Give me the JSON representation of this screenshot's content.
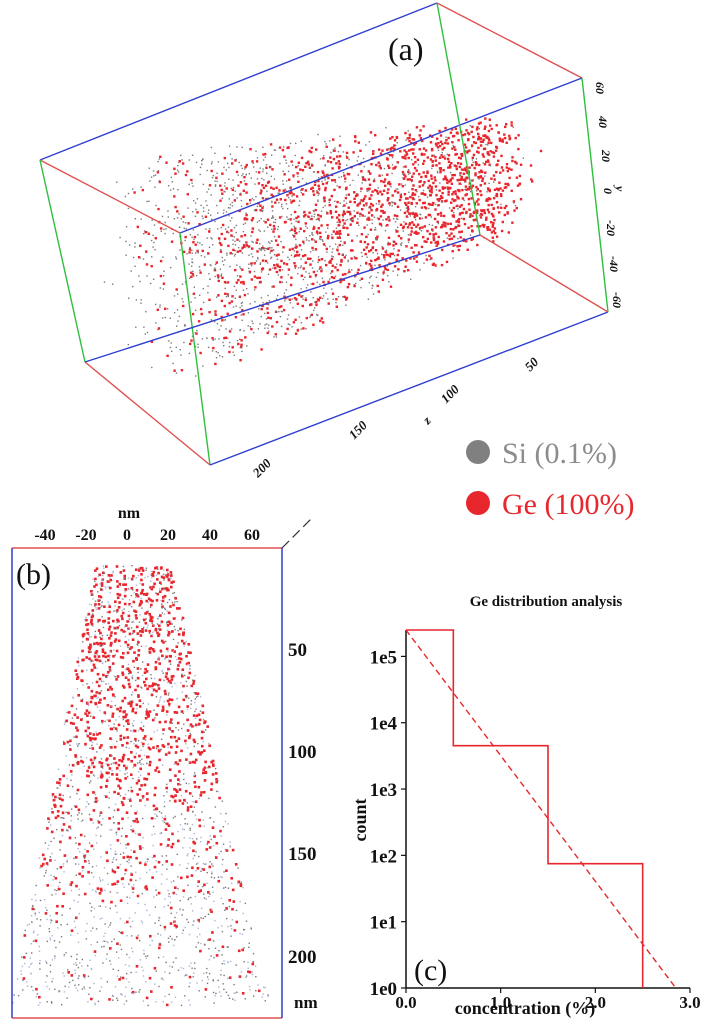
{
  "panel_a": {
    "label": "(a)",
    "z_ticks": [
      "200",
      "150",
      "100",
      "50"
    ],
    "z_axis_label": "z",
    "y_ticks": [
      "60",
      "40",
      "20",
      "0",
      "-20",
      "-40",
      "-60"
    ],
    "y_axis_label": "y"
  },
  "legend": {
    "items": [
      {
        "label": "Si (0.1%)",
        "color": "#808080",
        "text_color": "#8c8c8c"
      },
      {
        "label": "Ge (100%)",
        "color": "#e8262d",
        "text_color": "#e8262d"
      }
    ]
  },
  "panel_b": {
    "label": "(b)",
    "top_unit": "nm",
    "top_ticks": [
      "-40",
      "-20",
      "0",
      "20",
      "40",
      "60"
    ],
    "right_ticks": [
      "50",
      "100",
      "150",
      "200"
    ],
    "right_unit": "nm"
  },
  "colors": {
    "si": "#7a7a7a",
    "ge": "#e8262d",
    "frame_red": "#e05050",
    "frame_blue": "#2f3fd0",
    "frame_green": "#2fbf3f"
  },
  "chart_data": {
    "type": "line",
    "title": "Ge distribution analysis",
    "xlabel": "concentration (%)",
    "ylabel": "count",
    "panel_label": "(c)",
    "xlim": [
      0,
      3
    ],
    "ylim": [
      1,
      250000
    ],
    "y_scale": "log",
    "x_tick_labels": [
      "0.0",
      "1.0",
      "2.0",
      "3.0"
    ],
    "x_ticks": [
      0,
      1,
      2,
      3
    ],
    "y_tick_labels": [
      "1e0",
      "1e1",
      "1e2",
      "1e3",
      "1e4",
      "1e5"
    ],
    "y_ticks": [
      1,
      10,
      100,
      1000,
      10000,
      100000
    ],
    "series": [
      {
        "style": "step",
        "color": "#e8262d",
        "bins": [
          {
            "x0": 0.0,
            "x1": 0.5,
            "count": 250000
          },
          {
            "x0": 0.5,
            "x1": 1.5,
            "count": 4500
          },
          {
            "x0": 1.5,
            "x1": 2.5,
            "count": 75
          },
          {
            "x0": 2.5,
            "x1": 2.5,
            "count": 1
          }
        ]
      },
      {
        "style": "dashed",
        "color": "#e8262d",
        "x": [
          0.0,
          2.85
        ],
        "y": [
          250000,
          0.6
        ]
      }
    ]
  }
}
